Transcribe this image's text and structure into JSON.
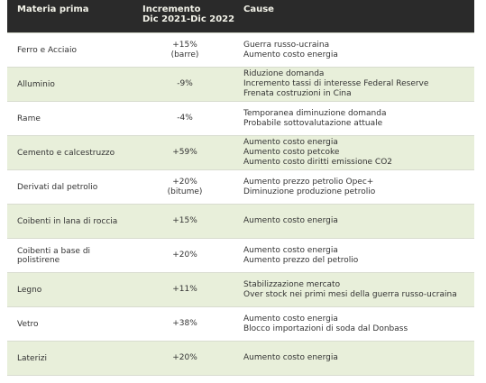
{
  "header": {
    "material": "Materia prima",
    "increment": [
      "Incremento",
      "Dic 2021-Dic 2022"
    ],
    "causes": "Cause"
  },
  "rows": [
    {
      "material": "Ferro e Acciaio",
      "increment": [
        "+15%",
        "(barre)"
      ],
      "causes": [
        "Guerra russo-ucraina",
        "Aumento costo energia"
      ]
    },
    {
      "material": "Alluminio",
      "increment": [
        "-9%"
      ],
      "causes": [
        "Riduzione domanda",
        "Incremento tassi di interesse Federal Reserve",
        "Frenata costruzioni in Cina"
      ]
    },
    {
      "material": "Rame",
      "increment": [
        "-4%"
      ],
      "causes": [
        "Temporanea diminuzione domanda",
        "Probabile sottovalutazione attuale"
      ]
    },
    {
      "material": "Cemento e calcestruzzo",
      "increment": [
        "+59%"
      ],
      "causes": [
        "Aumento costo energia",
        "Aumento costo petcoke",
        "Aumento costo diritti emissione CO2"
      ]
    },
    {
      "material": "Derivati dal petrolio",
      "increment": [
        "+20%",
        "(bitume)"
      ],
      "causes": [
        "Aumento prezzo petrolio Opec+",
        "Diminuzione produzione petrolio"
      ]
    },
    {
      "material": "Coibenti in lana di roccia",
      "increment": [
        "+15%"
      ],
      "causes": [
        "Aumento costo energia"
      ]
    },
    {
      "material": "Coibenti a base di polistirene",
      "increment": [
        "+20%"
      ],
      "causes": [
        "Aumento costo energia",
        "Aumento prezzo del petrolio"
      ]
    },
    {
      "material": "Legno",
      "increment": [
        "+11%"
      ],
      "causes": [
        "Stabilizzazione mercato",
        "Over stock nei primi mesi della guerra russo-ucraina"
      ]
    },
    {
      "material": "Vetro",
      "increment": [
        "+38%"
      ],
      "causes": [
        "Aumento costo energia",
        "Blocco importazioni di soda dal Donbass"
      ]
    },
    {
      "material": "Laterizi",
      "increment": [
        "+20%"
      ],
      "causes": [
        "Aumento costo energia"
      ]
    }
  ]
}
